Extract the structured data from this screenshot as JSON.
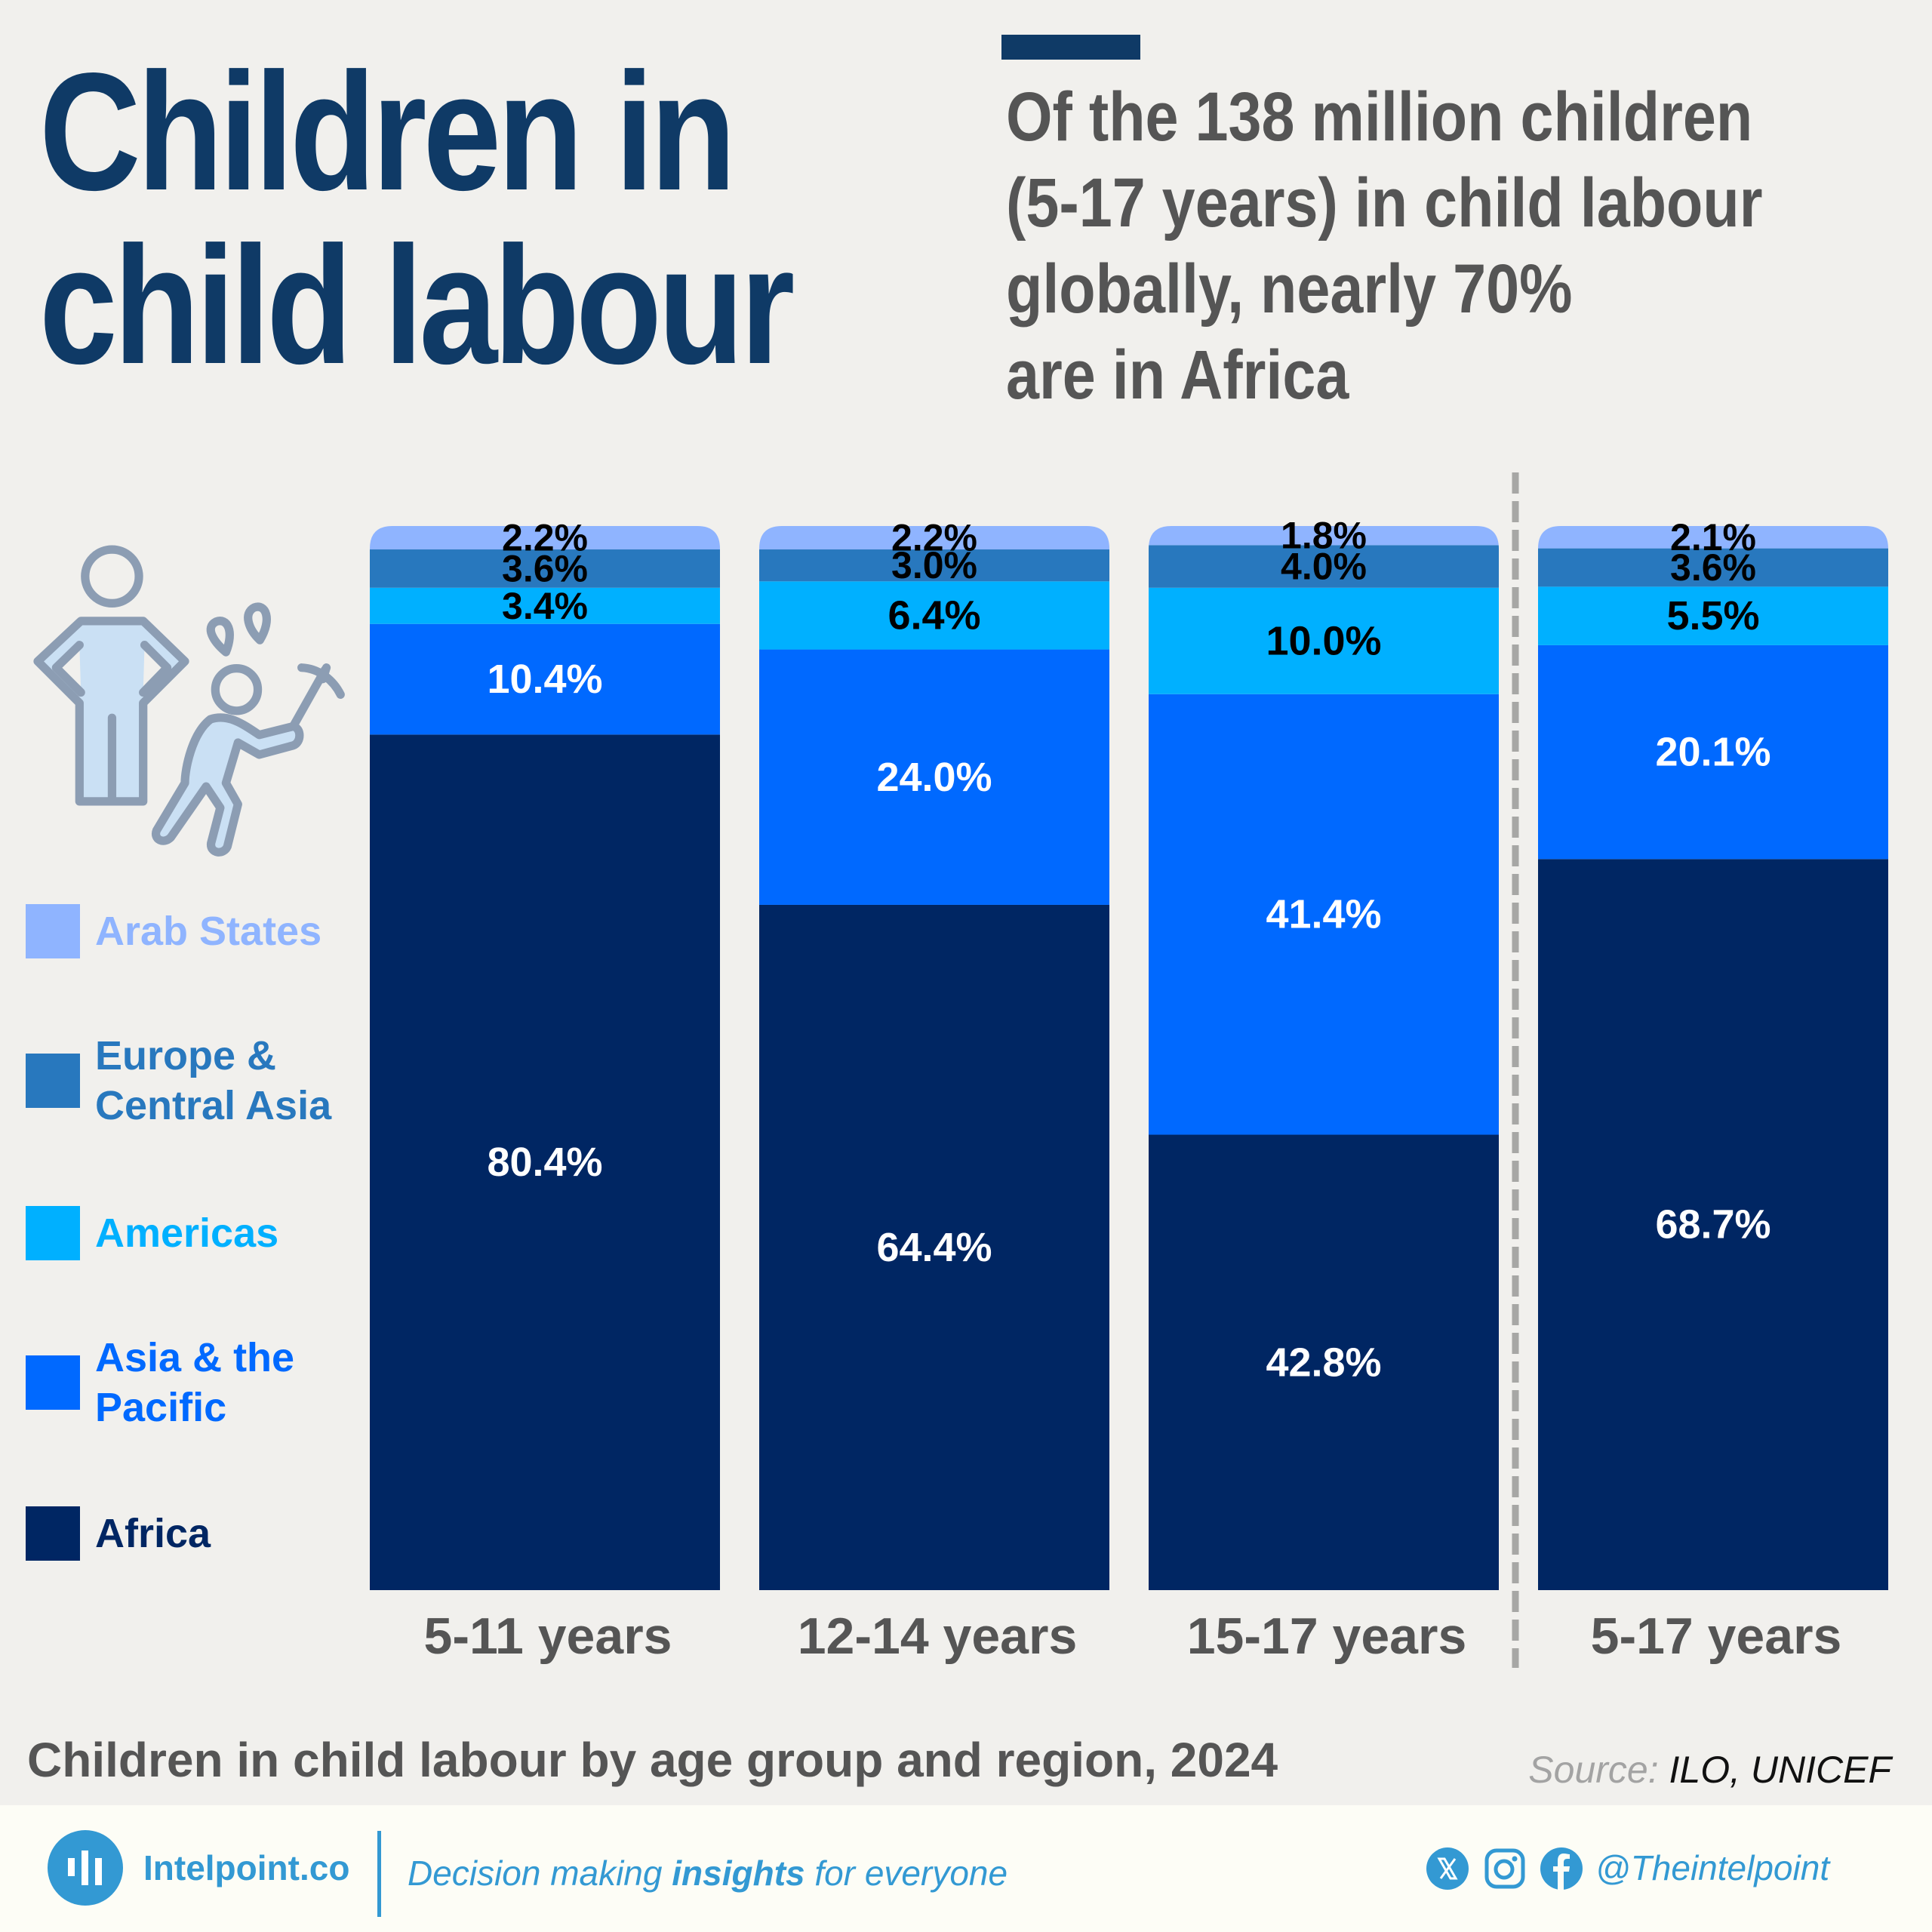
{
  "header": {
    "title_lines": [
      "Children in",
      "child labour"
    ],
    "subtitle_lines": [
      "Of the 138 million children",
      "(5-17 years) in child labour",
      "globally, nearly 70%",
      "are in Africa"
    ]
  },
  "illustration": {
    "icon": "adult-supervising-child-labourer-icon"
  },
  "legend": [
    {
      "label_lines": [
        "Arab States"
      ],
      "color": "#8fb4ff"
    },
    {
      "label_lines": [
        "Europe &",
        "Central Asia"
      ],
      "color": "#2878be"
    },
    {
      "label_lines": [
        "Americas"
      ],
      "color": "#00b0ff"
    },
    {
      "label_lines": [
        "Asia & the",
        "Pacific"
      ],
      "color": "#0069ff"
    },
    {
      "label_lines": [
        "Africa"
      ],
      "color": "#002663"
    }
  ],
  "chart_data": {
    "type": "bar",
    "stacked": true,
    "orientation": "vertical",
    "title": "Children in child labour by age group and region, 2024",
    "xlabel": "",
    "ylabel": "",
    "ylim": [
      0,
      100
    ],
    "unit": "%",
    "grid": false,
    "legend_position": "left",
    "categories": [
      "5-11 years",
      "12-14 years",
      "15-17 years",
      "5-17 years"
    ],
    "separator_before_category": "5-17 years",
    "series": [
      {
        "name": "Africa",
        "color": "#002663",
        "label_color": "#ffffff",
        "values": [
          80.4,
          64.4,
          42.8,
          68.7
        ],
        "labels": [
          "80.4%",
          "64.4%",
          "42.8%",
          "68.7%"
        ]
      },
      {
        "name": "Asia & the Pacific",
        "color": "#0069ff",
        "label_color": "#ffffff",
        "values": [
          10.4,
          24.0,
          41.4,
          20.1
        ],
        "labels": [
          "10.4%",
          "24.0%",
          "41.4%",
          "20.1%"
        ]
      },
      {
        "name": "Americas",
        "color": "#00b0ff",
        "label_color": "#000000",
        "values": [
          3.4,
          6.4,
          10.0,
          5.5
        ],
        "labels": [
          "3.4%",
          "6.4%",
          "10.0%",
          "5.5%"
        ]
      },
      {
        "name": "Europe & Central Asia",
        "color": "#2878be",
        "label_color": "#000000",
        "values": [
          3.6,
          3.0,
          4.0,
          3.6
        ],
        "labels": [
          "3.6%",
          "3.0%",
          "4.0%",
          "3.6%"
        ]
      },
      {
        "name": "Arab States",
        "color": "#8fb4ff",
        "label_color": "#000000",
        "values": [
          2.2,
          2.2,
          1.8,
          2.1
        ],
        "labels": [
          "2.2%",
          "2.2%",
          "1.8%",
          "2.1%"
        ]
      }
    ]
  },
  "caption": "Children in child labour by age group and region, 2024",
  "source": {
    "label": "Source:",
    "value": "ILO, UNICEF"
  },
  "footer": {
    "brand": "Intelpoint.co",
    "tagline_pre": "Decision making ",
    "tagline_bold": "insights",
    "tagline_post": " for everyone",
    "social_icons": [
      "x-icon",
      "instagram-icon",
      "facebook-icon"
    ],
    "handle": "@Theintelpoint",
    "accent_color": "#3399d3"
  }
}
